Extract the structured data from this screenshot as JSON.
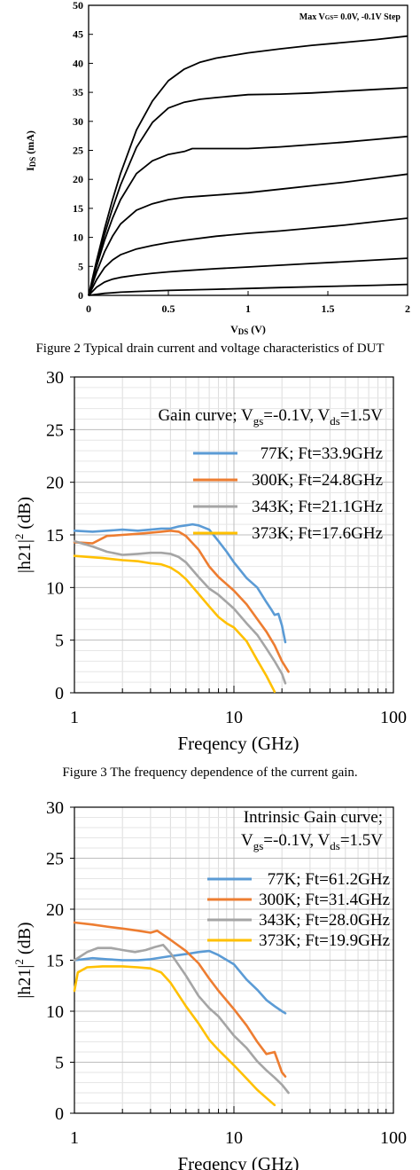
{
  "figures": [
    {
      "caption": "Figure 2 Typical drain current and voltage characteristics of DUT",
      "chart_data": {
        "type": "line",
        "title": "",
        "annotation": "Max V GS= 0.0V, -0.1V Step",
        "annotation_parts": [
          "Max V",
          "GS",
          "= 0.0V, -0.1V Step"
        ],
        "xlabel": "VDS (V)",
        "xlabel_parts": [
          "V",
          "DS",
          " (V)"
        ],
        "ylabel": "IDS (mA)",
        "ylabel_parts": [
          "I",
          "DS",
          " (mA)"
        ],
        "xlim": [
          0,
          2
        ],
        "ylim": [
          0,
          50
        ],
        "xticks": [
          "0",
          "0.5",
          "1",
          "1.5",
          "2"
        ],
        "yticks": [
          "0",
          "5",
          "10",
          "15",
          "20",
          "25",
          "30",
          "35",
          "40",
          "45",
          "50"
        ],
        "grid": false,
        "series": [
          {
            "x": [
              0,
              0.05,
              0.1,
              0.15,
              0.2,
              0.3,
              0.4,
              0.5,
              0.6,
              0.7,
              0.8,
              1.0,
              1.2,
              1.4,
              1.6,
              1.8,
              2.0
            ],
            "y": [
              0,
              6,
              11.5,
              16.5,
              21,
              28.5,
              33.5,
              37,
              39,
              40.2,
              40.9,
              41.8,
              42.5,
              43.1,
              43.6,
              44.1,
              44.7
            ]
          },
          {
            "x": [
              0,
              0.05,
              0.1,
              0.15,
              0.2,
              0.3,
              0.4,
              0.5,
              0.6,
              0.7,
              0.8,
              1.0,
              1.2,
              1.4,
              1.6,
              1.8,
              2.0
            ],
            "y": [
              0,
              5.5,
              10.5,
              15,
              19,
              25.5,
              29.8,
              32.3,
              33.3,
              33.8,
              34.1,
              34.6,
              34.7,
              34.9,
              35.2,
              35.5,
              35.8
            ]
          },
          {
            "x": [
              0,
              0.05,
              0.1,
              0.15,
              0.2,
              0.3,
              0.4,
              0.5,
              0.6,
              0.65,
              0.7,
              0.8,
              1.0,
              1.2,
              1.4,
              1.6,
              1.8,
              2.0
            ],
            "y": [
              0,
              5,
              9.5,
              13.3,
              16.5,
              21,
              23.2,
              24.3,
              24.8,
              25.3,
              25.3,
              25.3,
              25.3,
              25.6,
              26,
              26.4,
              26.9,
              27.4
            ]
          },
          {
            "x": [
              0,
              0.05,
              0.1,
              0.15,
              0.2,
              0.3,
              0.4,
              0.5,
              0.6,
              0.7,
              0.8,
              1.0,
              1.2,
              1.4,
              1.6,
              1.8,
              2.0
            ],
            "y": [
              0,
              4,
              7.5,
              10.2,
              12.3,
              14.7,
              15.8,
              16.5,
              16.9,
              17.1,
              17.3,
              17.7,
              18.3,
              18.9,
              19.5,
              20.2,
              20.9
            ]
          },
          {
            "x": [
              0,
              0.05,
              0.1,
              0.15,
              0.2,
              0.3,
              0.4,
              0.5,
              0.6,
              0.8,
              1.0,
              1.2,
              1.4,
              1.6,
              1.8,
              2.0
            ],
            "y": [
              0,
              2.7,
              4.8,
              6.1,
              7,
              8,
              8.6,
              9.1,
              9.5,
              10.2,
              10.7,
              11.1,
              11.6,
              12.1,
              12.7,
              13.3
            ]
          },
          {
            "x": [
              0,
              0.05,
              0.1,
              0.15,
              0.2,
              0.3,
              0.4,
              0.5,
              0.6,
              0.8,
              1.0,
              1.2,
              1.4,
              1.6,
              1.8,
              2.0
            ],
            "y": [
              0,
              1.4,
              2.3,
              2.8,
              3.1,
              3.5,
              3.8,
              4.05,
              4.25,
              4.6,
              4.9,
              5.2,
              5.5,
              5.8,
              6.1,
              6.4
            ]
          },
          {
            "x": [
              0,
              0.1,
              0.2,
              0.3,
              0.5,
              0.8,
              1.0,
              1.2,
              1.5,
              1.8,
              2.0
            ],
            "y": [
              0,
              0.35,
              0.55,
              0.68,
              0.85,
              1.05,
              1.2,
              1.35,
              1.55,
              1.75,
              1.9
            ]
          }
        ]
      }
    },
    {
      "caption": "Figure 3 The frequency dependence of the current gain.",
      "chart_data": {
        "type": "line",
        "title": "Gain curve; Vgs=-0.1V, Vds=1.5V",
        "title_parts": [
          "Gain curve; V",
          "gs",
          "=-0.1V, V",
          "ds",
          "=1.5V"
        ],
        "xlabel": "Freqency (GHz)",
        "ylabel": "|h21|2 (dB)",
        "ylabel_parts": [
          "|h21|",
          "2",
          " (dB)"
        ],
        "xscale": "log",
        "xlim": [
          1,
          100
        ],
        "ylim": [
          0,
          30
        ],
        "xticks": [
          "1",
          "10",
          "100"
        ],
        "yticks": [
          "0",
          "5",
          "10",
          "15",
          "20",
          "25",
          "30"
        ],
        "grid": true,
        "legend": "top-right",
        "series": [
          {
            "name": "77K; Ft=33.9GHz",
            "color": "#5b9bd5",
            "x": [
              1,
              1.3,
              1.6,
              2,
              2.5,
              3,
              3.5,
              4,
              4.5,
              5,
              5.5,
              6,
              7,
              8,
              9,
              10,
              12,
              14,
              16,
              17,
              18,
              19,
              20,
              21
            ],
            "y": [
              15.4,
              15.3,
              15.4,
              15.5,
              15.4,
              15.5,
              15.6,
              15.6,
              15.8,
              15.9,
              16,
              15.9,
              15.5,
              14.4,
              13.4,
              12.4,
              10.9,
              10,
              8.6,
              8,
              7.4,
              7.5,
              6.4,
              4.8
            ]
          },
          {
            "name": "300K; Ft=24.8GHz",
            "color": "#ed7d31",
            "x": [
              1,
              1.3,
              1.6,
              2,
              2.5,
              3,
              3.5,
              4,
              4.5,
              5,
              6,
              7,
              8,
              10,
              12,
              14,
              16,
              18,
              20,
              22
            ],
            "y": [
              14.3,
              14.2,
              14.9,
              15.0,
              15.1,
              15.2,
              15.3,
              15.4,
              15.3,
              14.9,
              13.6,
              12,
              11,
              9.7,
              8.4,
              7,
              5.8,
              4.5,
              3.0,
              2
            ]
          },
          {
            "name": "343K; Ft=21.1GHz",
            "color": "#a5a5a5",
            "x": [
              1,
              1.3,
              1.6,
              2,
              2.5,
              3,
              3.5,
              4,
              4.5,
              5,
              6,
              7,
              8,
              10,
              12,
              14,
              16,
              18,
              20,
              21
            ],
            "y": [
              14.4,
              13.9,
              13.4,
              13.1,
              13.2,
              13.3,
              13.3,
              13.2,
              12.9,
              12.4,
              11,
              9.9,
              9.3,
              8,
              6.6,
              5.5,
              4.2,
              3.0,
              1.8,
              0.9
            ]
          },
          {
            "name": "373K; Ft=17.6GHz",
            "color": "#ffc000",
            "x": [
              1,
              1.5,
              2,
              2.5,
              3,
              3.5,
              4,
              4.5,
              5,
              6,
              7,
              8,
              9,
              10,
              12,
              14,
              16,
              18
            ],
            "y": [
              13.0,
              12.8,
              12.6,
              12.5,
              12.3,
              12.2,
              11.9,
              11.4,
              10.8,
              9.4,
              8.2,
              7.2,
              6.6,
              6.2,
              4.9,
              3.1,
              1.6,
              0.1
            ]
          }
        ]
      }
    },
    {
      "caption": "",
      "chart_data": {
        "type": "line",
        "title": "Intrinsic Gain curve; Vgs=-0.1V, Vds=1.5V",
        "title_line1": "Intrinsic Gain curve;",
        "title_parts": [
          "V",
          "gs",
          "=-0.1V, V",
          "ds",
          "=1.5V"
        ],
        "xlabel": "Freqency (GHz)",
        "ylabel": "|h21|2 (dB)",
        "ylabel_parts": [
          "|h21|",
          "2",
          " (dB)"
        ],
        "xscale": "log",
        "xlim": [
          1,
          100
        ],
        "ylim": [
          0,
          30
        ],
        "xticks": [
          "1",
          "10",
          "100"
        ],
        "yticks": [
          "0",
          "5",
          "10",
          "15",
          "20",
          "25",
          "30"
        ],
        "grid": true,
        "legend": "top-right",
        "series": [
          {
            "name": "77K; Ft=61.2GHz",
            "color": "#5b9bd5",
            "x": [
              1,
              1.3,
              1.6,
              2,
              2.5,
              3,
              4,
              5,
              6,
              7,
              8,
              10,
              12,
              14,
              16,
              18,
              20,
              21
            ],
            "y": [
              15.0,
              15.2,
              15.1,
              15.0,
              15.0,
              15.1,
              15.4,
              15.6,
              15.8,
              15.9,
              15.5,
              14.6,
              13.1,
              12.1,
              11.1,
              10.5,
              10.0,
              9.8
            ]
          },
          {
            "name": "300K; Ft=31.4GHz",
            "color": "#ed7d31",
            "x": [
              1,
              1.3,
              1.6,
              2,
              2.5,
              3,
              3.3,
              3.6,
              4,
              5,
              6,
              7,
              8,
              10,
              12,
              14,
              16,
              18,
              20,
              21
            ],
            "y": [
              18.7,
              18.5,
              18.3,
              18.1,
              17.9,
              17.7,
              17.9,
              17.5,
              17.0,
              15.9,
              14.7,
              13.2,
              12.0,
              10.2,
              8.6,
              7.0,
              5.8,
              6.0,
              4.0,
              3.6
            ]
          },
          {
            "name": "343K; Ft=28.0GHz",
            "color": "#a5a5a5",
            "x": [
              1,
              1.2,
              1.4,
              1.7,
              2,
              2.4,
              2.8,
              3.2,
              3.6,
              4,
              5,
              6,
              7,
              8,
              10,
              12,
              14,
              16,
              18,
              20,
              22
            ],
            "y": [
              15.0,
              15.8,
              16.2,
              16.2,
              16.0,
              15.8,
              16.0,
              16.3,
              16.5,
              15.7,
              13.5,
              11.5,
              10.3,
              9.5,
              7.6,
              6.4,
              5.1,
              4.2,
              3.5,
              2.8,
              2.0
            ]
          },
          {
            "name": "373K; Ft=19.9GHz",
            "color": "#ffc000",
            "x": [
              1,
              1.05,
              1.2,
              1.5,
              2,
              2.5,
              3,
              3.5,
              4,
              5,
              6,
              7,
              8,
              10,
              12,
              14,
              16,
              18
            ],
            "y": [
              12.0,
              13.8,
              14.3,
              14.4,
              14.4,
              14.3,
              14.2,
              13.8,
              12.8,
              10.5,
              8.8,
              7.2,
              6.2,
              4.7,
              3.4,
              2.3,
              1.5,
              0.8
            ]
          }
        ]
      }
    }
  ]
}
